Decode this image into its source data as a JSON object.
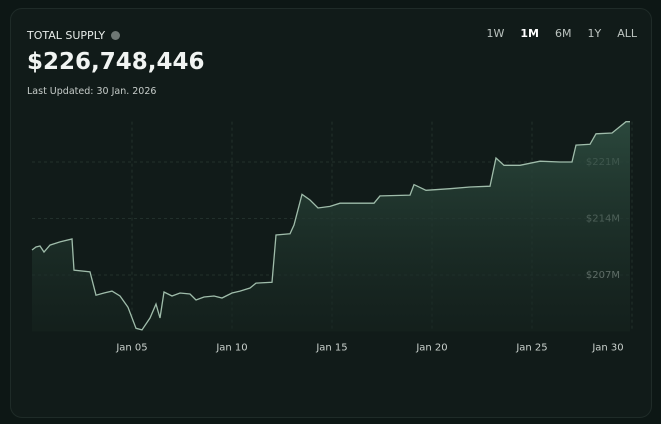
{
  "header": {
    "title": "TOTAL SUPPLY",
    "value": "$226,748,446",
    "last_updated": "Last Updated: 30 Jan. 2026",
    "ranges": [
      "1W",
      "1M",
      "6M",
      "1Y",
      "ALL"
    ],
    "active_range_index": 1
  },
  "chart_data": {
    "type": "area",
    "x": [
      0,
      0.2,
      0.4,
      0.6,
      0.9,
      1.4,
      2,
      2.1,
      2.9,
      3.2,
      3.6,
      4,
      4.4,
      4.8,
      5.2,
      5.5,
      5.9,
      6.2,
      6.4,
      6.6,
      7,
      7.4,
      7.9,
      8.2,
      8.6,
      9.1,
      9.5,
      10,
      10.4,
      10.9,
      11.2,
      12,
      12.2,
      12.9,
      13.1,
      13.5,
      13.9,
      14.3,
      14.9,
      15.4,
      16.2,
      17.1,
      17.4,
      18.9,
      19.1,
      19.7,
      20.9,
      21.9,
      22.9,
      23.2,
      23.6,
      24.4,
      25.4,
      26.4,
      27,
      27.2,
      27.9,
      28.2,
      29,
      29.7,
      29.9
    ],
    "values": [
      210100000,
      210470000,
      210600000,
      209850000,
      210700000,
      211100000,
      211460000,
      207600000,
      207400000,
      204500000,
      204770000,
      205000000,
      204400000,
      203000000,
      200400000,
      200200000,
      201670000,
      203400000,
      201670000,
      204900000,
      204400000,
      204770000,
      204650000,
      203900000,
      204270000,
      204400000,
      204150000,
      204770000,
      205000000,
      205390000,
      206000000,
      206100000,
      211960000,
      212100000,
      213200000,
      217000000,
      216300000,
      215300000,
      215500000,
      215900000,
      215900000,
      215900000,
      216800000,
      216900000,
      218200000,
      217500000,
      217700000,
      217900000,
      218000000,
      221500000,
      220600000,
      220600000,
      221100000,
      221000000,
      221000000,
      223100000,
      223200000,
      224500000,
      224600000,
      226000000,
      226000000
    ],
    "color": "#9fbcaa",
    "xlim": [
      0,
      30
    ],
    "xticks": [
      {
        "value": 5,
        "label": "Jan 05"
      },
      {
        "value": 10,
        "label": "Jan 10"
      },
      {
        "value": 15,
        "label": "Jan 15"
      },
      {
        "value": 20,
        "label": "Jan 20"
      },
      {
        "value": 25,
        "label": "Jan 25"
      },
      {
        "value": 30,
        "label": "Jan 30"
      }
    ],
    "ylim": [
      200000000,
      227000000
    ],
    "yticks": [
      {
        "value": 207000000,
        "label": "$207M"
      },
      {
        "value": 214000000,
        "label": "$214M"
      },
      {
        "value": 221000000,
        "label": "$221M"
      }
    ],
    "grid": true
  }
}
